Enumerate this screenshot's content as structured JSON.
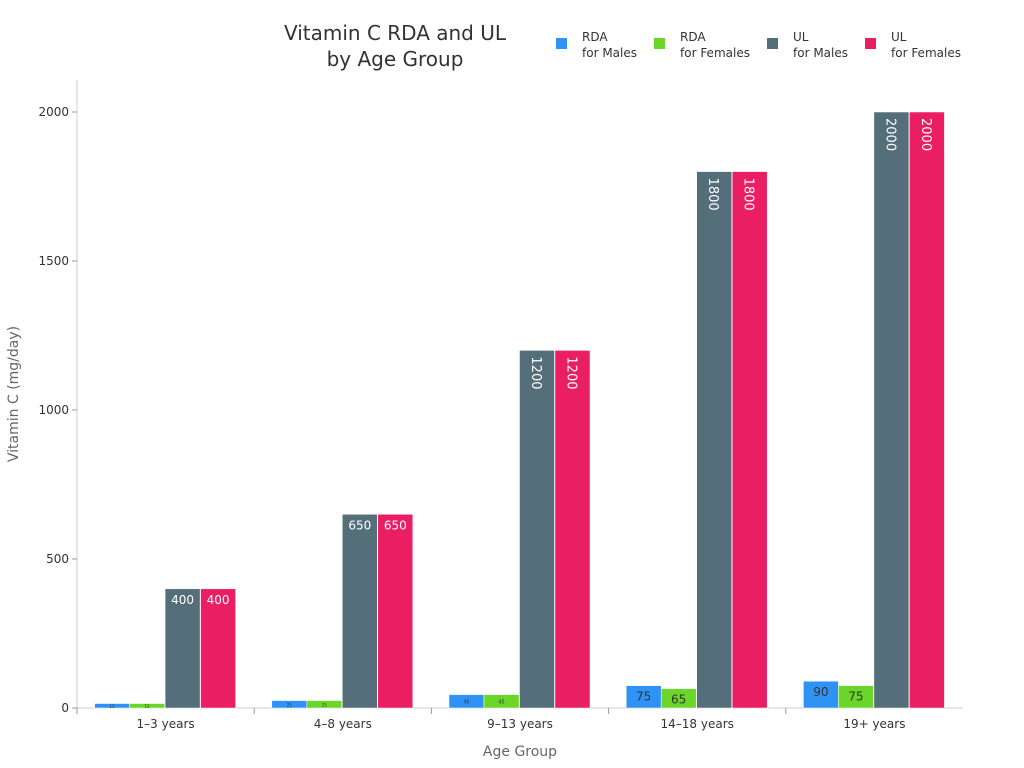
{
  "chart_data": {
    "type": "bar",
    "title": [
      "Vitamin C RDA and UL",
      "by Age Group"
    ],
    "xlabel": "Age Group",
    "ylabel": "Vitamin C (mg/day)",
    "ylim": [
      0,
      2000
    ],
    "yticks": [
      0,
      500,
      1000,
      1500,
      2000
    ],
    "categories": [
      "1–3 years",
      "4–8 years",
      "9–13 years",
      "14–18 years",
      "19+ years"
    ],
    "legend_position": "top-right",
    "series": [
      {
        "name": [
          "RDA",
          "for Males"
        ],
        "color": "#2e93f5",
        "values": [
          15,
          25,
          45,
          75,
          90
        ]
      },
      {
        "name": [
          "RDA",
          "for Females"
        ],
        "color": "#6bd62a",
        "values": [
          15,
          25,
          45,
          65,
          75
        ]
      },
      {
        "name": [
          "UL",
          "for Males"
        ],
        "color": "#546e7a",
        "values": [
          400,
          650,
          1200,
          1800,
          2000
        ]
      },
      {
        "name": [
          "UL",
          "for Females"
        ],
        "color": "#e91e63",
        "values": [
          400,
          650,
          1200,
          1800,
          2000
        ]
      }
    ]
  }
}
